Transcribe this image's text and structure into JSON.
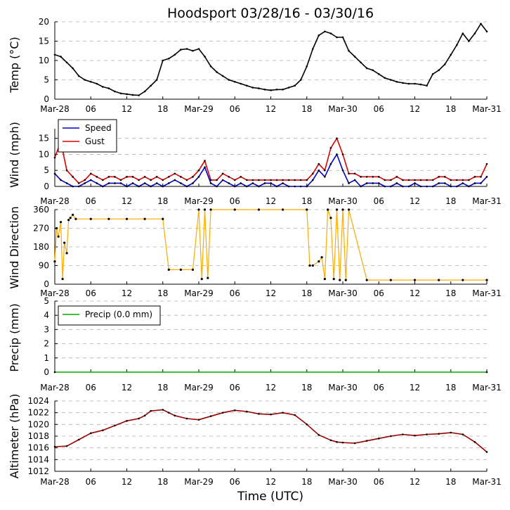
{
  "figure": {
    "title": "Hoodsport 03/28/16 - 03/30/16",
    "xlabel": "Time (UTC)"
  },
  "x_ticks": [
    "Mar-28",
    "06",
    "12",
    "18",
    "Mar-29",
    "06",
    "12",
    "18",
    "Mar-30",
    "06",
    "12",
    "18",
    "Mar-31"
  ],
  "chart_data": [
    {
      "type": "line",
      "name": "temperature",
      "ylabel": "Temp (°C)",
      "ylim": [
        0,
        20
      ],
      "yticks": [
        "0",
        "5",
        "10",
        "15",
        "20"
      ],
      "grid": true,
      "x_unit": "hours since Mar-28 00:00 UTC",
      "xlim": [
        0,
        72
      ],
      "series": [
        {
          "name": "Temp",
          "color": "#000000",
          "x": [
            0,
            1,
            2,
            3,
            4,
            5,
            6,
            7,
            8,
            9,
            10,
            11,
            12,
            13,
            14,
            15,
            16,
            17,
            18,
            19,
            20,
            21,
            22,
            23,
            24,
            25,
            26,
            27,
            28,
            29,
            30,
            31,
            32,
            33,
            34,
            35,
            36,
            37,
            38,
            39,
            40,
            41,
            42,
            43,
            44,
            45,
            46,
            47,
            48,
            49,
            50,
            51,
            52,
            53,
            54,
            55,
            56,
            57,
            58,
            59,
            60,
            61,
            62,
            63,
            64,
            65,
            66,
            67,
            68,
            69,
            70,
            71,
            72
          ],
          "values": [
            11.5,
            11,
            9.5,
            8,
            6,
            5,
            4.5,
            4,
            3.2,
            2.8,
            2,
            1.5,
            1.3,
            1.1,
            1,
            2,
            3.5,
            5,
            10,
            10.5,
            11.5,
            12.8,
            13,
            12.5,
            13,
            11,
            8.5,
            7,
            6,
            5,
            4.5,
            4,
            3.5,
            3,
            2.8,
            2.5,
            2.3,
            2.5,
            2.5,
            3,
            3.5,
            5,
            8.5,
            13,
            16.5,
            17.5,
            17,
            16,
            16,
            12.5,
            11,
            9.5,
            8,
            7.5,
            6.5,
            5.5,
            5,
            4.5,
            4.2,
            4,
            4,
            3.8,
            3.5,
            6.5,
            7.5,
            9,
            11.5,
            14,
            17,
            15,
            17,
            19.5,
            17.5
          ]
        }
      ]
    },
    {
      "type": "line",
      "name": "wind",
      "ylabel": "Wind (mph)",
      "ylim": [
        0,
        18
      ],
      "yticks": [
        "0",
        "5",
        "10",
        "15"
      ],
      "grid": true,
      "legend": "top-left",
      "x_unit": "hours since Mar-28 00:00 UTC",
      "xlim": [
        0,
        72
      ],
      "series": [
        {
          "name": "Speed",
          "color": "#0000cc",
          "x": [
            0,
            1,
            2,
            3,
            4,
            5,
            6,
            7,
            8,
            9,
            10,
            11,
            12,
            13,
            14,
            15,
            16,
            17,
            18,
            19,
            20,
            21,
            22,
            23,
            24,
            25,
            26,
            27,
            28,
            29,
            30,
            31,
            32,
            33,
            34,
            35,
            36,
            37,
            38,
            39,
            40,
            41,
            42,
            43,
            44,
            45,
            46,
            47,
            48,
            49,
            50,
            51,
            52,
            53,
            54,
            55,
            56,
            57,
            58,
            59,
            60,
            61,
            62,
            63,
            64,
            65,
            66,
            67,
            68,
            69,
            70,
            71,
            72
          ],
          "values": [
            4,
            2,
            1,
            0,
            0,
            1,
            2,
            1,
            0,
            1,
            1,
            1,
            0,
            1,
            0,
            1,
            0,
            1,
            0,
            1,
            2,
            1,
            0,
            1,
            3,
            6,
            1,
            0,
            2,
            1,
            0,
            1,
            0,
            1,
            0,
            1,
            1,
            0,
            1,
            0,
            0,
            0,
            0,
            2,
            5,
            3,
            7,
            10,
            5,
            1,
            2,
            0,
            1,
            1,
            1,
            0,
            0,
            1,
            0,
            0,
            1,
            0,
            0,
            0,
            1,
            1,
            0,
            0,
            1,
            0,
            1,
            1,
            3
          ]
        },
        {
          "name": "Gust",
          "color": "#dd0000",
          "x": [
            0,
            1,
            2,
            3,
            4,
            5,
            6,
            7,
            8,
            9,
            10,
            11,
            12,
            13,
            14,
            15,
            16,
            17,
            18,
            19,
            20,
            21,
            22,
            23,
            24,
            25,
            26,
            27,
            28,
            29,
            30,
            31,
            32,
            33,
            34,
            35,
            36,
            37,
            38,
            39,
            40,
            41,
            42,
            43,
            44,
            45,
            46,
            47,
            48,
            49,
            50,
            51,
            52,
            53,
            54,
            55,
            56,
            57,
            58,
            59,
            60,
            61,
            62,
            63,
            64,
            65,
            66,
            67,
            68,
            69,
            70,
            71,
            72
          ],
          "values": [
            9,
            14,
            5,
            3,
            1,
            2,
            4,
            3,
            2,
            3,
            3,
            2,
            3,
            3,
            2,
            3,
            2,
            3,
            2,
            3,
            4,
            3,
            2,
            3,
            5,
            8,
            2,
            2,
            4,
            3,
            2,
            3,
            2,
            2,
            2,
            2,
            2,
            2,
            2,
            2,
            2,
            2,
            2,
            4,
            7,
            5,
            12,
            15,
            10,
            4,
            4,
            3,
            3,
            3,
            3,
            2,
            2,
            3,
            2,
            2,
            2,
            2,
            2,
            2,
            3,
            3,
            2,
            2,
            2,
            2,
            3,
            3,
            7
          ]
        }
      ]
    },
    {
      "type": "scatter",
      "name": "wind_direction",
      "ylabel": "Wind Direction",
      "ylim": [
        0,
        360
      ],
      "yticks": [
        "0",
        "90",
        "180",
        "270",
        "360"
      ],
      "grid": true,
      "x_unit": "hours since Mar-28 00:00 UTC",
      "xlim": [
        0,
        72
      ],
      "series": [
        {
          "name": "Direction",
          "color": "#ffaa00",
          "x": [
            0,
            0.3,
            0.6,
            1,
            1.3,
            1.6,
            2,
            2.3,
            2.6,
            3,
            3.5,
            6,
            9,
            12,
            15,
            18,
            19,
            21,
            23,
            24,
            24.5,
            25,
            25.5,
            26,
            30,
            34,
            38,
            42,
            42.5,
            43,
            44,
            44.5,
            45,
            45.5,
            46,
            46.5,
            47,
            47.5,
            48,
            48.5,
            49,
            52,
            56,
            60,
            64,
            68,
            72
          ],
          "values": [
            110,
            270,
            230,
            300,
            25,
            200,
            150,
            310,
            320,
            335,
            315,
            315,
            315,
            315,
            315,
            315,
            70,
            70,
            70,
            360,
            25,
            360,
            30,
            360,
            360,
            360,
            360,
            360,
            90,
            90,
            110,
            130,
            25,
            360,
            320,
            25,
            360,
            20,
            360,
            20,
            360,
            20,
            20,
            20,
            20,
            20,
            20
          ]
        }
      ]
    },
    {
      "type": "line",
      "name": "precipitation",
      "ylabel": "Precip (mm)",
      "ylim": [
        0,
        5
      ],
      "yticks": [
        "0",
        "1",
        "2",
        "3",
        "4",
        "5"
      ],
      "grid": true,
      "legend": "top-left",
      "x_unit": "hours since Mar-28 00:00 UTC",
      "xlim": [
        0,
        72
      ],
      "series": [
        {
          "name": "Precip (0.0 mm)",
          "color": "#00aa00",
          "x": [
            0,
            72
          ],
          "values": [
            0,
            0
          ]
        }
      ]
    },
    {
      "type": "line",
      "name": "altimeter",
      "ylabel": "Altimeter (hPa)",
      "ylim": [
        1012,
        1024
      ],
      "yticks": [
        "1012",
        "1014",
        "1016",
        "1018",
        "1020",
        "1022",
        "1024"
      ],
      "grid": true,
      "x_unit": "hours since Mar-28 00:00 UTC",
      "xlim": [
        0,
        72
      ],
      "series": [
        {
          "name": "Altimeter",
          "color": "#990000",
          "x": [
            0,
            2,
            4,
            6,
            8,
            10,
            12,
            14,
            15,
            16,
            18,
            19,
            20,
            22,
            24,
            26,
            28,
            30,
            32,
            34,
            36,
            38,
            40,
            42,
            44,
            46,
            47,
            48,
            50,
            52,
            54,
            56,
            58,
            60,
            62,
            64,
            66,
            68,
            70,
            72
          ],
          "values": [
            1016.2,
            1016.3,
            1017.4,
            1018.5,
            1019.0,
            1019.8,
            1020.6,
            1021.0,
            1021.5,
            1022.3,
            1022.5,
            1022.0,
            1021.5,
            1021.0,
            1020.8,
            1021.4,
            1022.0,
            1022.4,
            1022.2,
            1021.8,
            1021.7,
            1022.0,
            1021.6,
            1020.0,
            1018.2,
            1017.3,
            1017.0,
            1016.9,
            1016.8,
            1017.2,
            1017.6,
            1018.0,
            1018.3,
            1018.1,
            1018.3,
            1018.4,
            1018.6,
            1018.3,
            1017.0,
            1015.3
          ]
        }
      ]
    }
  ]
}
